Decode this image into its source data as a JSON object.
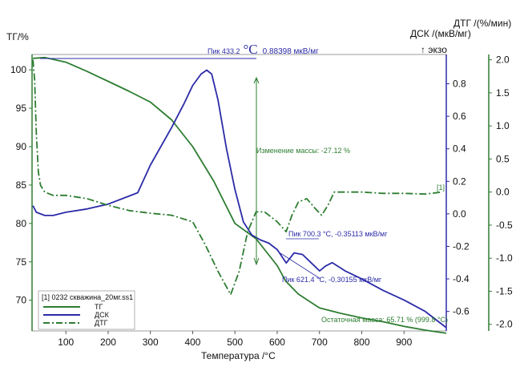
{
  "chart_data": {
    "type": "line",
    "xlabel": "Температура /°C",
    "xlim": [
      20,
      1000
    ],
    "x_ticks": [
      100,
      200,
      300,
      400,
      500,
      600,
      700,
      800,
      900
    ],
    "left_axis": {
      "label": "ТГ/%",
      "ylim": [
        66,
        102
      ],
      "ticks": [
        70,
        75,
        80,
        85,
        90,
        95,
        100
      ],
      "color": "#2e7d32"
    },
    "dsc_axis": {
      "label_line1": "ДСК /(мкВ/мг)",
      "label_line2": "↑ экзо",
      "ylim": [
        -0.72,
        0.98
      ],
      "ticks": [
        -0.6,
        -0.4,
        -0.2,
        0.0,
        0.2,
        0.4,
        0.6,
        0.8
      ],
      "tick_labels": [
        "-0.6",
        "-0.4",
        "-0.2",
        "0.0",
        "0.2",
        "0.4",
        "0.6",
        "0.8"
      ],
      "color": "#2b2ba8"
    },
    "dtg_axis": {
      "label": "ДТГ /(%/мин)",
      "ylim": [
        -2.1,
        2.08
      ],
      "ticks": [
        -2.0,
        -1.5,
        -1.0,
        -0.5,
        0.0,
        0.5,
        1.0,
        1.5,
        2.0
      ],
      "tick_labels": [
        "-2.0",
        "-1.5",
        "-1.0",
        "-0.5",
        "0.0",
        "0.5",
        "1.0",
        "1.5",
        "2.0"
      ],
      "color": "#2e7d32"
    },
    "series": [
      {
        "name": "ТГ",
        "axis": "left",
        "color": "#2e7d32",
        "style": "solid",
        "points": [
          [
            22,
            101.5
          ],
          [
            50,
            101.6
          ],
          [
            100,
            101.0
          ],
          [
            150,
            99.8
          ],
          [
            200,
            98.5
          ],
          [
            250,
            97.2
          ],
          [
            300,
            95.8
          ],
          [
            350,
            93.5
          ],
          [
            400,
            90.0
          ],
          [
            450,
            85.5
          ],
          [
            500,
            80.0
          ],
          [
            550,
            78.0
          ],
          [
            600,
            74.5
          ],
          [
            620,
            72.5
          ],
          [
            650,
            70.8
          ],
          [
            700,
            69.0
          ],
          [
            750,
            68.3
          ],
          [
            800,
            67.7
          ],
          [
            850,
            67.2
          ],
          [
            900,
            66.6
          ],
          [
            950,
            66.1
          ],
          [
            1000,
            65.7
          ]
        ]
      },
      {
        "name": "ДСК",
        "axis": "dsc",
        "color": "#2b2ba8",
        "style": "solid",
        "points": [
          [
            22,
            0.05
          ],
          [
            30,
            0.01
          ],
          [
            50,
            -0.01
          ],
          [
            70,
            -0.01
          ],
          [
            100,
            0.01
          ],
          [
            150,
            0.03
          ],
          [
            200,
            0.06
          ],
          [
            250,
            0.11
          ],
          [
            270,
            0.13
          ],
          [
            300,
            0.3
          ],
          [
            350,
            0.53
          ],
          [
            380,
            0.68
          ],
          [
            400,
            0.79
          ],
          [
            420,
            0.86
          ],
          [
            433.2,
            0.884
          ],
          [
            445,
            0.86
          ],
          [
            460,
            0.7
          ],
          [
            480,
            0.4
          ],
          [
            500,
            0.15
          ],
          [
            520,
            -0.05
          ],
          [
            540,
            -0.13
          ],
          [
            560,
            -0.16
          ],
          [
            580,
            -0.18
          ],
          [
            600,
            -0.22
          ],
          [
            621.4,
            -0.302
          ],
          [
            640,
            -0.24
          ],
          [
            660,
            -0.25
          ],
          [
            680,
            -0.3
          ],
          [
            700.3,
            -0.351
          ],
          [
            715,
            -0.32
          ],
          [
            730,
            -0.3
          ],
          [
            760,
            -0.35
          ],
          [
            800,
            -0.4
          ],
          [
            850,
            -0.47
          ],
          [
            900,
            -0.53
          ],
          [
            950,
            -0.6
          ],
          [
            1000,
            -0.7
          ]
        ]
      },
      {
        "name": "ДТГ",
        "axis": "dtg",
        "color": "#2e7d32",
        "style": "dashdot",
        "points": [
          [
            22,
            2.0
          ],
          [
            26,
            1.7
          ],
          [
            30,
            0.9
          ],
          [
            35,
            0.3
          ],
          [
            40,
            0.1
          ],
          [
            50,
            0.0
          ],
          [
            70,
            -0.05
          ],
          [
            100,
            -0.05
          ],
          [
            150,
            -0.1
          ],
          [
            200,
            -0.2
          ],
          [
            250,
            -0.28
          ],
          [
            300,
            -0.32
          ],
          [
            350,
            -0.35
          ],
          [
            400,
            -0.45
          ],
          [
            430,
            -0.8
          ],
          [
            460,
            -1.2
          ],
          [
            490,
            -1.55
          ],
          [
            510,
            -1.2
          ],
          [
            530,
            -0.6
          ],
          [
            550,
            -0.3
          ],
          [
            570,
            -0.3
          ],
          [
            600,
            -0.45
          ],
          [
            621,
            -0.6
          ],
          [
            635,
            -0.35
          ],
          [
            650,
            -0.15
          ],
          [
            670,
            -0.1
          ],
          [
            690,
            -0.25
          ],
          [
            705,
            -0.35
          ],
          [
            720,
            -0.2
          ],
          [
            735,
            0.0
          ],
          [
            760,
            0.0
          ],
          [
            800,
            0.0
          ],
          [
            850,
            -0.02
          ],
          [
            900,
            -0.02
          ],
          [
            950,
            -0.03
          ],
          [
            990,
            0.0
          ]
        ]
      }
    ],
    "annotations": {
      "peak_dsc_prefix": "Пик 433.2",
      "peak_dsc_unit": "°C",
      "peak_dsc_value": "0.88398 мкВ/мг",
      "mass_change": "Изменение массы: -27.12 %",
      "peak_700": "Пик 700.3 °C, -0.35113 мкВ/мг",
      "peak_621": "Пик 621.4 °C, -0.30155 мкВ/мг",
      "residual_mass": "Остаточная масса: 65.71 % (999.8 °C)",
      "curve_tag": "[1]"
    },
    "legend": {
      "position": "bottom-left",
      "title": "[1] 0232 скважина_20мг.ss1",
      "entries": [
        "ТГ",
        "ДСК",
        "ДТГ"
      ]
    }
  }
}
